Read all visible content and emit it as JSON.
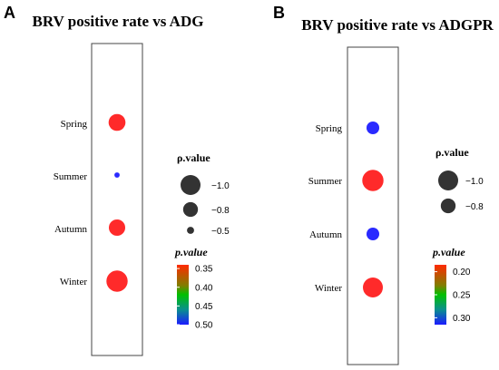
{
  "chart_data": [
    {
      "type": "scatter",
      "panel_letter": "A",
      "title": "BRV positive rate vs ADG",
      "categories": [
        "Spring",
        "Summer",
        "Autumn",
        "Winter"
      ],
      "rho_values": [
        -0.88,
        -0.43,
        -0.86,
        -1.05
      ],
      "p_values": [
        0.35,
        0.5,
        0.35,
        0.35
      ],
      "size_legend": {
        "title": "ρ.value",
        "values": [
          -1.0,
          -0.8,
          -0.5
        ],
        "labels": [
          "−1.0",
          "−0.8",
          "−0.5"
        ]
      },
      "color_legend": {
        "title": "p.value",
        "range": [
          0.34,
          0.5
        ],
        "ticks": [
          0.35,
          0.4,
          0.45,
          0.5
        ],
        "tick_labels": [
          "0.35",
          "0.40",
          "0.45",
          "0.50"
        ],
        "reversed": true
      }
    },
    {
      "type": "scatter",
      "panel_letter": "B",
      "title": "BRV positive rate vs ADGPR",
      "categories": [
        "Spring",
        "Summer",
        "Autumn",
        "Winter"
      ],
      "rho_values": [
        -0.72,
        -1.05,
        -0.72,
        -1.0
      ],
      "p_values": [
        0.31,
        0.2,
        0.31,
        0.2
      ],
      "size_legend": {
        "title": "ρ.value",
        "values": [
          -1.0,
          -0.8
        ],
        "labels": [
          "−1.0",
          "−0.8"
        ]
      },
      "color_legend": {
        "title": "p.value",
        "range": [
          0.185,
          0.315
        ],
        "ticks": [
          0.2,
          0.25,
          0.3
        ],
        "tick_labels": [
          "0.20",
          "0.25",
          "0.30"
        ],
        "reversed": true
      }
    }
  ]
}
